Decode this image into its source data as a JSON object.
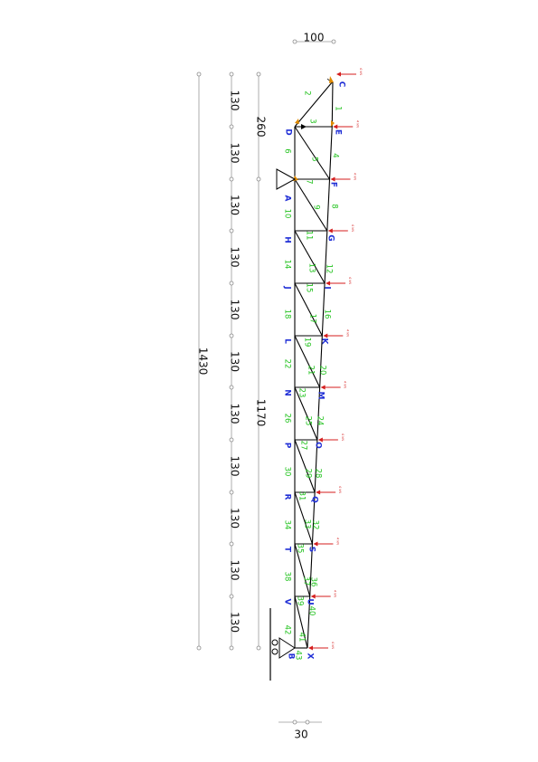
{
  "dimensions": {
    "top_width": "100",
    "bottom_width": "30",
    "total_height": "1430",
    "upper_segment": "260",
    "lower_segment": "1170",
    "panel": [
      "130",
      "130",
      "130",
      "130",
      "130",
      "130",
      "130",
      "130",
      "130",
      "130",
      "130"
    ]
  },
  "nodes": [
    {
      "id": "C",
      "label": "C"
    },
    {
      "id": "D",
      "label": "D"
    },
    {
      "id": "E",
      "label": "E"
    },
    {
      "id": "A",
      "label": "A"
    },
    {
      "id": "F",
      "label": "F"
    },
    {
      "id": "H",
      "label": "H"
    },
    {
      "id": "G",
      "label": "G"
    },
    {
      "id": "J",
      "label": "J"
    },
    {
      "id": "I",
      "label": "I"
    },
    {
      "id": "L",
      "label": "L"
    },
    {
      "id": "K",
      "label": "K"
    },
    {
      "id": "N",
      "label": "N"
    },
    {
      "id": "M",
      "label": "M"
    },
    {
      "id": "P",
      "label": "P"
    },
    {
      "id": "O",
      "label": "O"
    },
    {
      "id": "R",
      "label": "R"
    },
    {
      "id": "Q",
      "label": "Q"
    },
    {
      "id": "T",
      "label": "T"
    },
    {
      "id": "S",
      "label": "S"
    },
    {
      "id": "V",
      "label": "V"
    },
    {
      "id": "U",
      "label": "U"
    },
    {
      "id": "B",
      "label": "B"
    },
    {
      "id": "X",
      "label": "X"
    }
  ],
  "members": [
    "1",
    "2",
    "3",
    "4",
    "5",
    "6",
    "7",
    "8",
    "9",
    "10",
    "11",
    "12",
    "13",
    "14",
    "15",
    "16",
    "17",
    "18",
    "19",
    "20",
    "21",
    "22",
    "23",
    "24",
    "25",
    "26",
    "27",
    "28",
    "29",
    "30",
    "31",
    "32",
    "33",
    "34",
    "35",
    "36",
    "37",
    "38",
    "39",
    "40",
    "41",
    "42",
    "43"
  ],
  "loads": {
    "label": "4 kN",
    "count": 12
  },
  "colors": {
    "nodes": "#1f2ed6",
    "members": "#21c21d",
    "loads": "#d41d1d",
    "truss": "#000000"
  }
}
